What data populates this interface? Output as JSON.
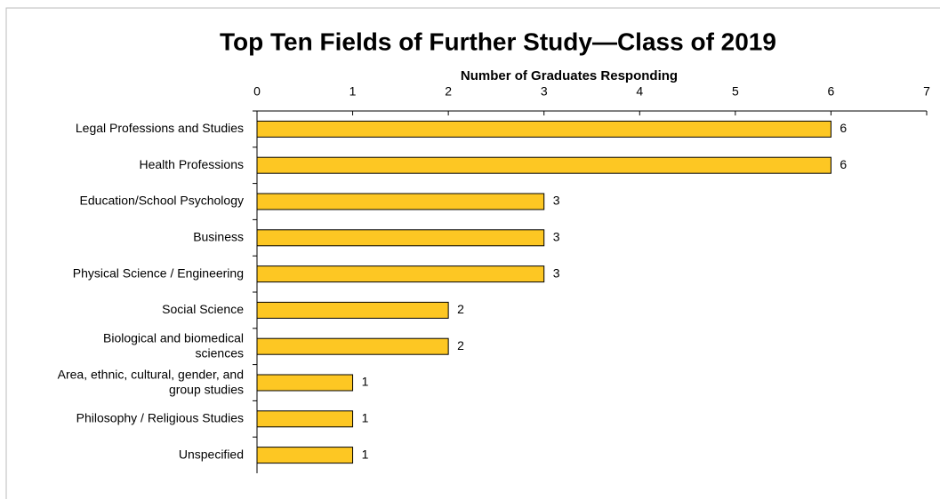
{
  "chart_data": {
    "type": "bar",
    "orientation": "horizontal",
    "title": "Top Ten Fields of Further Study—Class of 2019",
    "x_label": "Number of  Graduates Responding",
    "categories": [
      "Legal Professions and Studies",
      "Health Professions",
      "Education/School Psychology",
      "Business",
      "Physical Science / Engineering",
      "Social Science",
      "Biological and biomedical\nsciences",
      "Area, ethnic, cultural, gender, and\ngroup studies",
      "Philosophy / Religious Studies",
      "Unspecified"
    ],
    "values": [
      6,
      6,
      3,
      3,
      3,
      2,
      2,
      1,
      1,
      1
    ],
    "color": "#fdc723",
    "xlim": [
      0,
      7
    ],
    "xticks": [
      0,
      1,
      2,
      3,
      4,
      5,
      6,
      7
    ]
  }
}
